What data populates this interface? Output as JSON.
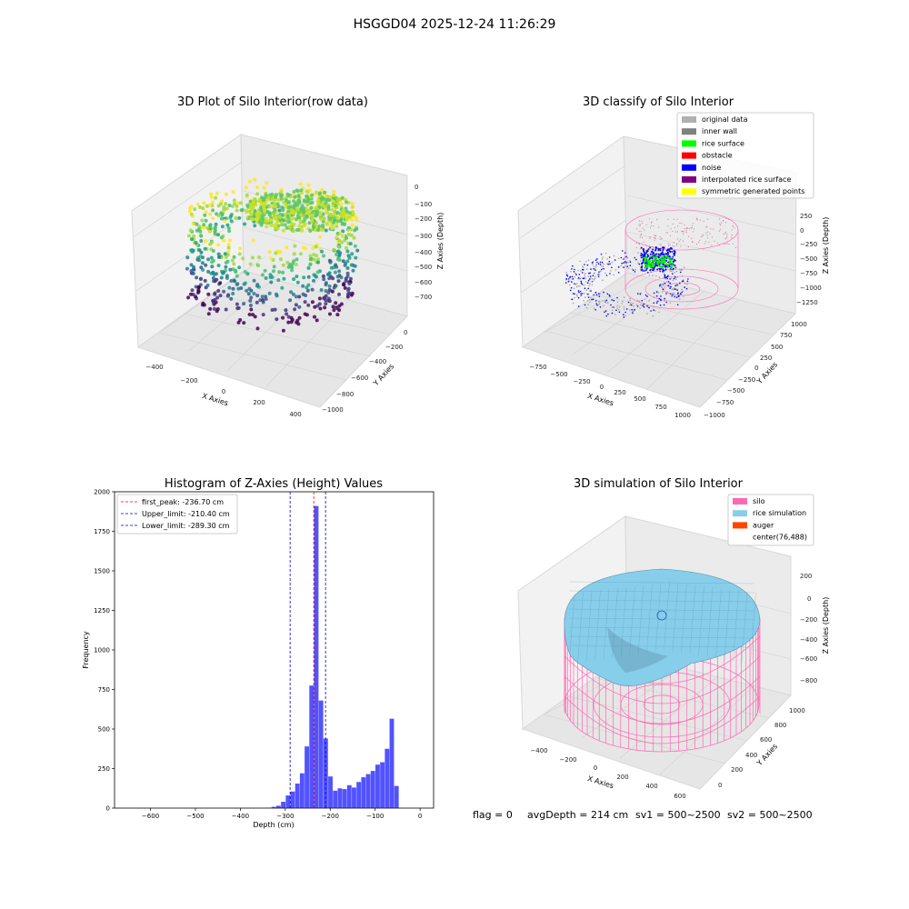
{
  "figure_title": "HSGGD04 2025-12-24 11:26:29",
  "status_line": {
    "flag": "flag = 0",
    "avg_depth": "avgDepth = 214 cm",
    "sv1": "sv1 = 500~2500",
    "sv2": "sv2 = 500~2500"
  },
  "chart_data": [
    {
      "type": "scatter3d",
      "title": "3D Plot of Silo Interior(row data)",
      "xlabel": "X Axies",
      "ylabel": "Y Axies",
      "zlabel": "Z Axies (Depth)",
      "xticks": [
        "−400",
        "−200",
        "0",
        "200",
        "400"
      ],
      "yticks": [
        "0",
        "−200",
        "−400",
        "−600",
        "−800",
        "−1000"
      ],
      "zticks": [
        "0",
        "−100",
        "−200",
        "−300",
        "−400",
        "−500",
        "−600",
        "−700"
      ],
      "colormap": "viridis"
    },
    {
      "type": "scatter3d",
      "title": "3D classify of Silo Interior",
      "xlabel": "X Axies",
      "ylabel": "Y Axies",
      "zlabel": "Z Axies (Depth)",
      "xticks": [
        "−750",
        "−500",
        "−250",
        "0",
        "250",
        "500",
        "750",
        "1000"
      ],
      "yticks": [
        "1000",
        "750",
        "500",
        "250",
        "0",
        "−250",
        "−500",
        "−750",
        "−1000"
      ],
      "zticks": [
        "250",
        "0",
        "−250",
        "−500",
        "−750",
        "−1000",
        "−1250"
      ],
      "legend_position": "top-right",
      "legend": [
        {
          "label": "original data",
          "color": "#b0b0b0"
        },
        {
          "label": "inner wall",
          "color": "#808080"
        },
        {
          "label": "rice surface",
          "color": "#00ff00"
        },
        {
          "label": "obstacle",
          "color": "#ff0000"
        },
        {
          "label": "noise",
          "color": "#0000ff"
        },
        {
          "label": "interpolated rice surface",
          "color": "#800080"
        },
        {
          "label": "symmetric generated points",
          "color": "#ffff00"
        }
      ]
    },
    {
      "type": "bar",
      "title": "Histogram of Z-Axies (Height) Values",
      "xlabel": "Depth (cm)",
      "ylabel": "Frequency",
      "xlim": [
        -680,
        30
      ],
      "ylim": [
        0,
        2000
      ],
      "xticks": [
        -600,
        -500,
        -400,
        -300,
        -200,
        -100,
        0
      ],
      "yticks": [
        0,
        250,
        500,
        750,
        1000,
        1250,
        1500,
        1750,
        2000
      ],
      "bar_color": "#0000ff",
      "bin_width": 10.5,
      "bins": [
        {
          "x": -341,
          "value": 3
        },
        {
          "x": -330.5,
          "value": 8
        },
        {
          "x": -320,
          "value": 15
        },
        {
          "x": -309.5,
          "value": 40
        },
        {
          "x": -299,
          "value": 80
        },
        {
          "x": -288.5,
          "value": 105
        },
        {
          "x": -278,
          "value": 155
        },
        {
          "x": -267.5,
          "value": 220
        },
        {
          "x": -257,
          "value": 390
        },
        {
          "x": -246.5,
          "value": 775
        },
        {
          "x": -236,
          "value": 1910
        },
        {
          "x": -225.5,
          "value": 680
        },
        {
          "x": -215,
          "value": 440
        },
        {
          "x": -204.5,
          "value": 200
        },
        {
          "x": -194,
          "value": 110
        },
        {
          "x": -183.5,
          "value": 125
        },
        {
          "x": -173,
          "value": 120
        },
        {
          "x": -162.5,
          "value": 145
        },
        {
          "x": -152,
          "value": 130
        },
        {
          "x": -141.5,
          "value": 165
        },
        {
          "x": -131,
          "value": 195
        },
        {
          "x": -120.5,
          "value": 215
        },
        {
          "x": -110,
          "value": 235
        },
        {
          "x": -99.5,
          "value": 275
        },
        {
          "x": -89,
          "value": 290
        },
        {
          "x": -78.5,
          "value": 375
        },
        {
          "x": -68,
          "value": 565
        },
        {
          "x": -57.5,
          "value": 140
        }
      ],
      "vlines": [
        {
          "label": "first_peak: -236.70 cm",
          "x": -236.7,
          "color": "#ff0000"
        },
        {
          "label": "Upper_limit: -210.40 cm",
          "x": -210.4,
          "color": "#0000cc"
        },
        {
          "label": "Lower_limit: -289.30 cm",
          "x": -289.3,
          "color": "#0000cc"
        }
      ],
      "legend_position": "top-left"
    },
    {
      "type": "surface3d",
      "title": "3D simulation of Silo Interior",
      "xlabel": "X Axies",
      "ylabel": "Y Axies",
      "zlabel": "Z Axies (Depth)",
      "xticks": [
        "−400",
        "−200",
        "0",
        "200",
        "400",
        "600"
      ],
      "yticks": [
        "1000",
        "800",
        "600",
        "400",
        "200",
        "0"
      ],
      "zticks": [
        "200",
        "0",
        "−200",
        "−400",
        "−600",
        "−800"
      ],
      "legend_position": "top-right",
      "legend": [
        {
          "label": "silo",
          "color": "#ff69b4"
        },
        {
          "label": "rice simulation",
          "color": "#87ceeb"
        },
        {
          "label": "auger",
          "color": "#ff4500"
        },
        {
          "label": "center(76,488)",
          "color": "none"
        }
      ]
    }
  ]
}
